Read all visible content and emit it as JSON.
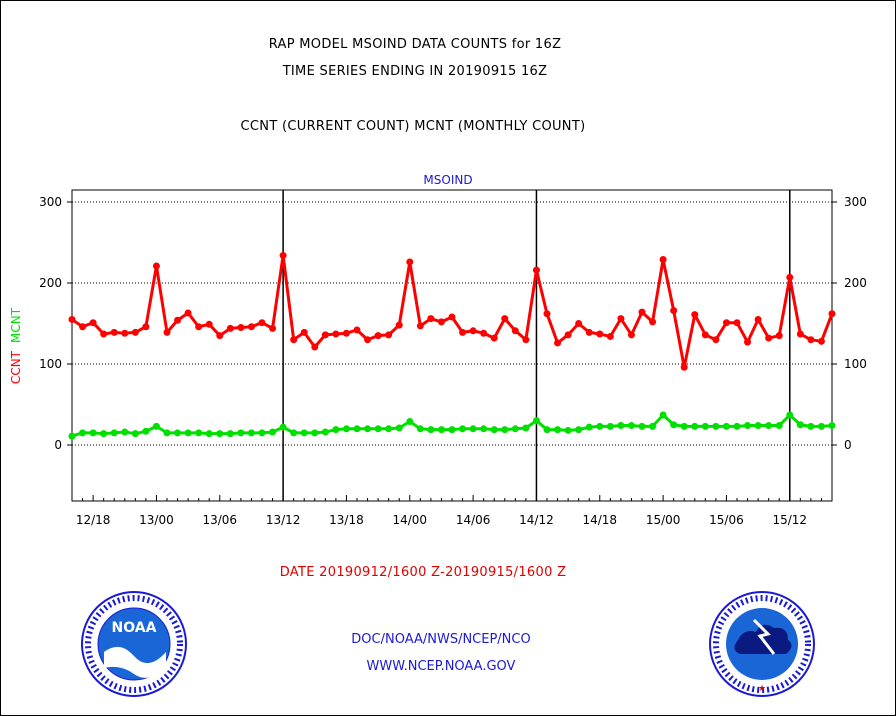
{
  "header": {
    "line1": "RAP MODEL MSOIND DATA COUNTS for 16Z",
    "line2": "TIME SERIES ENDING IN 20190915 16Z",
    "line3": "CCNT (CURRENT COUNT) MCNT (MONTHLY COUNT)"
  },
  "footer": {
    "date_range": "DATE 20190912/1600 Z-20190915/1600 Z",
    "agency": "DOC/NOAA/NWS/NCEP/NCO",
    "url": "WWW.NCEP.NOAA.GOV"
  },
  "logos": {
    "noaa": "NOAA",
    "nws_ring": "NATIONAL WEATHER SERVICE"
  },
  "colors": {
    "ccnt": "#ff0000",
    "mcnt": "#00e000",
    "station_label": "#1a1ad6"
  },
  "chart_data": {
    "type": "line",
    "title": "MSOIND",
    "ylabel_left": [
      "CCNT",
      "MCNT"
    ],
    "ylim": [
      -70,
      315
    ],
    "yticks": [
      0,
      100,
      200,
      300
    ],
    "grid": true,
    "x_unit": "hours",
    "xlim": [
      0,
      72
    ],
    "xticks": [
      {
        "x": 2,
        "label": "12/18"
      },
      {
        "x": 8,
        "label": "13/00"
      },
      {
        "x": 14,
        "label": "13/06"
      },
      {
        "x": 20,
        "label": "13/12"
      },
      {
        "x": 26,
        "label": "13/18"
      },
      {
        "x": 32,
        "label": "14/00"
      },
      {
        "x": 38,
        "label": "14/06"
      },
      {
        "x": 44,
        "label": "14/12"
      },
      {
        "x": 50,
        "label": "14/18"
      },
      {
        "x": 56,
        "label": "15/00"
      },
      {
        "x": 62,
        "label": "15/06"
      },
      {
        "x": 68,
        "label": "15/12"
      }
    ],
    "vlines": [
      20,
      44,
      68
    ],
    "series": [
      {
        "name": "CCNT",
        "color": "#ff0000",
        "values": [
          155,
          146,
          151,
          137,
          139,
          138,
          139,
          146,
          221,
          139,
          154,
          163,
          146,
          149,
          135,
          144,
          145,
          146,
          151,
          144,
          234,
          130,
          139,
          121,
          136,
          137,
          138,
          142,
          130,
          135,
          136,
          148,
          226,
          147,
          156,
          152,
          158,
          139,
          141,
          138,
          132,
          156,
          141,
          130,
          216,
          162,
          126,
          136,
          150,
          139,
          137,
          134,
          156,
          136,
          164,
          152,
          229,
          166,
          96,
          161,
          136,
          130,
          151,
          151,
          127,
          155,
          132,
          135,
          207,
          137,
          130,
          128,
          162
        ]
      },
      {
        "name": "MCNT",
        "color": "#00e000",
        "values": [
          11,
          15,
          15,
          14,
          15,
          16,
          14,
          17,
          23,
          15,
          15,
          15,
          15,
          14,
          14,
          14,
          15,
          15,
          15,
          16,
          22,
          15,
          15,
          15,
          16,
          19,
          20,
          20,
          20,
          20,
          20,
          21,
          29,
          20,
          19,
          19,
          19,
          20,
          20,
          20,
          19,
          19,
          20,
          21,
          30,
          19,
          19,
          18,
          19,
          22,
          23,
          23,
          24,
          24,
          23,
          23,
          37,
          25,
          23,
          23,
          23,
          23,
          23,
          23,
          24,
          24,
          24,
          24,
          37,
          25,
          23,
          23,
          24
        ]
      }
    ]
  }
}
